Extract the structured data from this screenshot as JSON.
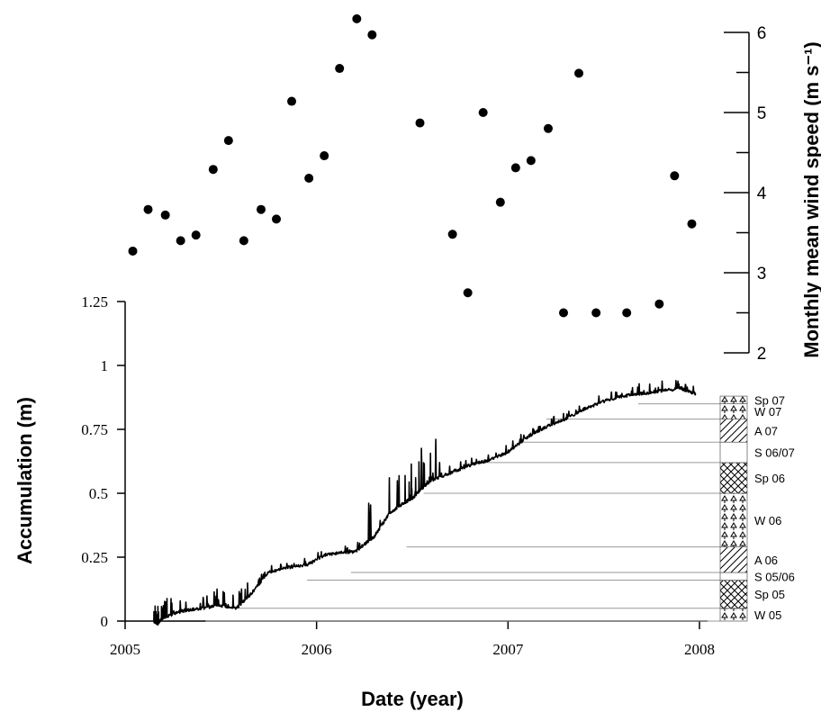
{
  "chart_data": [
    {
      "type": "line",
      "name": "accumulation",
      "xlabel": "Date (year)",
      "ylabel": "Accumulation (m)",
      "xlim": [
        2005,
        2008
      ],
      "ylim": [
        0,
        1.25
      ],
      "x_ticks": [
        2005,
        2006,
        2007,
        2008
      ],
      "x_tick_labels": [
        "2005",
        "2006",
        "2007",
        "2008"
      ],
      "y_ticks": [
        0,
        0.25,
        0.5,
        0.75,
        1,
        1.25
      ],
      "y_tick_labels": [
        "0",
        "0.25",
        "0.5",
        "0.75",
        "1",
        "1.25"
      ],
      "series": [
        {
          "x": [
            2005.15,
            2005.17,
            2005.19,
            2005.22,
            2005.3,
            2005.4,
            2005.5,
            2005.58,
            2005.65,
            2005.75,
            2005.85,
            2005.95,
            2006.05,
            2006.15,
            2006.2,
            2006.3,
            2006.38,
            2006.45,
            2006.5,
            2006.55,
            2006.6,
            2006.7,
            2006.8,
            2006.9,
            2007.0,
            2007.1,
            2007.2,
            2007.3,
            2007.4,
            2007.5,
            2007.6,
            2007.7,
            2007.8,
            2007.9,
            2007.98
          ],
          "y": [
            0.0,
            -0.01,
            0.01,
            0.02,
            0.04,
            0.05,
            0.06,
            0.05,
            0.1,
            0.19,
            0.21,
            0.22,
            0.26,
            0.27,
            0.27,
            0.33,
            0.42,
            0.46,
            0.48,
            0.52,
            0.55,
            0.58,
            0.61,
            0.63,
            0.66,
            0.72,
            0.76,
            0.79,
            0.83,
            0.86,
            0.88,
            0.89,
            0.9,
            0.91,
            0.89
          ]
        }
      ],
      "season_bands": [
        {
          "label": "W 05",
          "bottom": 0.0,
          "top": 0.05,
          "pattern": "trees"
        },
        {
          "label": "Sp 05",
          "bottom": 0.05,
          "top": 0.16,
          "pattern": "crosshatch"
        },
        {
          "label": "S 05/06",
          "bottom": 0.16,
          "top": 0.19,
          "pattern": "none"
        },
        {
          "label": "A 06",
          "bottom": 0.19,
          "top": 0.29,
          "pattern": "diagonal"
        },
        {
          "label": "W 06",
          "bottom": 0.29,
          "top": 0.5,
          "pattern": "trees"
        },
        {
          "label": "Sp 06",
          "bottom": 0.5,
          "top": 0.62,
          "pattern": "crosshatch"
        },
        {
          "label": "S 06/07",
          "bottom": 0.62,
          "top": 0.7,
          "pattern": "none"
        },
        {
          "label": "A 07",
          "bottom": 0.7,
          "top": 0.79,
          "pattern": "diagonal"
        },
        {
          "label": "W 07",
          "bottom": 0.79,
          "top": 0.85,
          "pattern": "trees"
        },
        {
          "label": "Sp 07",
          "bottom": 0.85,
          "top": 0.88,
          "pattern": "trees"
        }
      ],
      "season_starts": [
        2005.42,
        2005.57,
        2005.95,
        2006.18,
        2006.47,
        2006.56,
        2006.83,
        2007.07,
        2007.2,
        2007.68
      ]
    },
    {
      "type": "scatter",
      "name": "monthly-wind-speed",
      "ylabel": "Monthly mean wind speed (m s⁻¹)",
      "ylim": [
        2,
        6.2
      ],
      "y_ticks": [
        2,
        3,
        4,
        5,
        6
      ],
      "y_tick_labels": [
        "2",
        "3",
        "4",
        "5",
        "6"
      ],
      "x": [
        2005.04,
        2005.12,
        2005.21,
        2005.29,
        2005.37,
        2005.46,
        2005.54,
        2005.62,
        2005.71,
        2005.79,
        2005.87,
        2005.96,
        2006.04,
        2006.12,
        2006.21,
        2006.29,
        2006.54,
        2006.71,
        2006.79,
        2006.87,
        2006.96,
        2007.04,
        2007.12,
        2007.21,
        2007.29,
        2007.37,
        2007.46,
        2007.62,
        2007.79,
        2007.87,
        2007.96
      ],
      "y": [
        3.27,
        3.79,
        3.72,
        3.4,
        3.47,
        4.29,
        4.65,
        3.4,
        3.79,
        3.67,
        5.14,
        4.18,
        4.46,
        5.55,
        6.17,
        5.97,
        4.87,
        3.48,
        2.75,
        5.0,
        3.88,
        4.31,
        4.4,
        4.8,
        2.5,
        5.49,
        2.5,
        2.5,
        2.61,
        4.21,
        3.61
      ]
    }
  ]
}
